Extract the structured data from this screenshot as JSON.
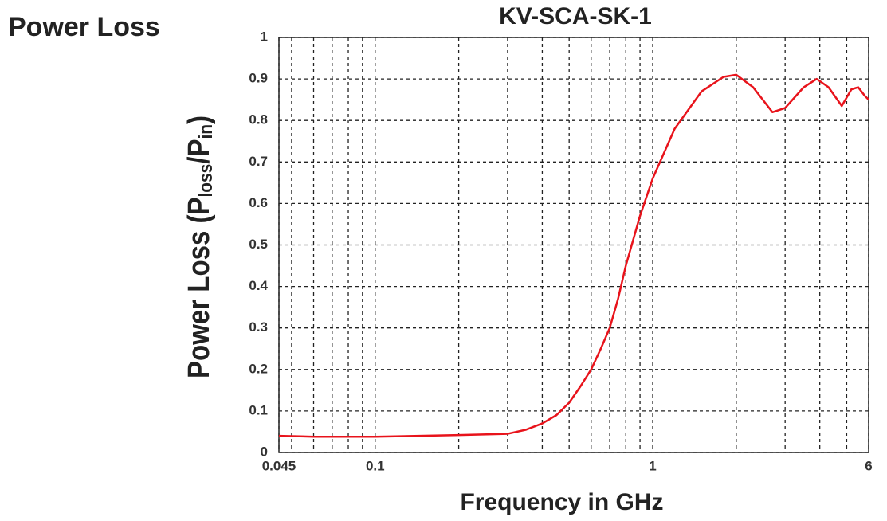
{
  "chart_data": {
    "type": "line",
    "annotation": "Power Loss",
    "title": "KV-SCA-SK-1",
    "xlabel": "Frequency in GHz",
    "ylabel": {
      "prefix": "Power Loss (P",
      "sub1": "loss",
      "mid": "/P",
      "sub2": "in",
      "suffix": ")"
    },
    "x": [
      0.045,
      0.06,
      0.1,
      0.2,
      0.3,
      0.35,
      0.4,
      0.45,
      0.5,
      0.55,
      0.6,
      0.65,
      0.7,
      0.75,
      0.8,
      0.9,
      1.0,
      1.2,
      1.5,
      1.8,
      2.0,
      2.3,
      2.7,
      3.0,
      3.5,
      3.9,
      4.3,
      4.8,
      5.2,
      5.5,
      5.8,
      6
    ],
    "series": [
      {
        "name": "KV-SCA-SK-1",
        "color": "#e8131b",
        "values": [
          0.04,
          0.038,
          0.038,
          0.042,
          0.045,
          0.055,
          0.07,
          0.09,
          0.12,
          0.16,
          0.2,
          0.25,
          0.3,
          0.37,
          0.45,
          0.57,
          0.66,
          0.78,
          0.87,
          0.905,
          0.91,
          0.88,
          0.82,
          0.83,
          0.88,
          0.9,
          0.88,
          0.835,
          0.875,
          0.88,
          0.86,
          0.85
        ]
      }
    ],
    "xscale": "log",
    "xlim": [
      0.045,
      6
    ],
    "xticks": [
      0.045,
      0.1,
      1,
      6
    ],
    "xminorticks": [
      0.05,
      0.06,
      0.07,
      0.08,
      0.09,
      0.2,
      0.3,
      0.4,
      0.5,
      0.6,
      0.7,
      0.8,
      0.9,
      2,
      3,
      4,
      5
    ],
    "ylim": [
      0,
      1
    ],
    "yticks": [
      0,
      0.1,
      0.2,
      0.3,
      0.4,
      0.5,
      0.6,
      0.7,
      0.8,
      0.9,
      1
    ],
    "grid": true
  }
}
